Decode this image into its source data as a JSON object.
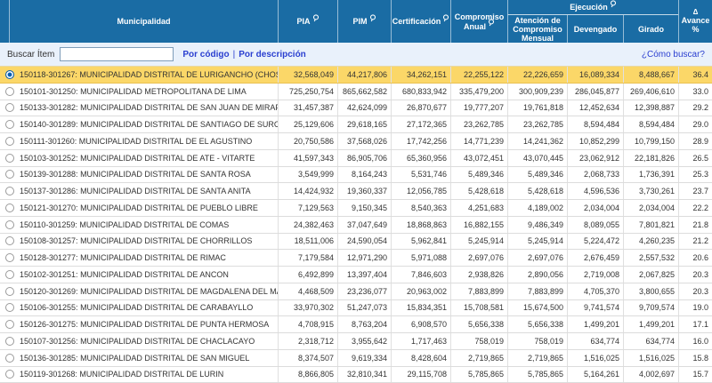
{
  "header": {
    "columns": {
      "municipality": "Municipalidad",
      "pia": "PIA",
      "pim": "PIM",
      "certificacion": "Certificación",
      "compromiso_anual": "Compromiso Anual",
      "ejecucion": "Ejecución",
      "atencion_compromiso_mensual": "Atención de Compromiso Mensual",
      "devengado": "Devengado",
      "girado": "Girado",
      "avance_sort_glyph": "Δ",
      "avance": "Avance %"
    }
  },
  "search": {
    "label": "Buscar Ítem",
    "value": "",
    "by_code_link": "Por código",
    "link_separator": "|",
    "by_description_link": "Por descripción",
    "help_link": "¿Cómo buscar?"
  },
  "colors": {
    "header_bg": "#1a6ca4",
    "selected_row_bg": "#fbd768",
    "link_blue": "#2a3fd0",
    "search_bar_bg": "#e9f1fb"
  },
  "table": {
    "rows": [
      {
        "selected": true,
        "code": "150118-301267",
        "name": "MUNICIPALIDAD DISTRITAL DE LURIGANCHO (CHOSICA)",
        "pia": "32,568,049",
        "pim": "44,217,806",
        "certificacion": "34,262,151",
        "compromiso_anual": "22,255,122",
        "atencion": "22,226,659",
        "devengado": "16,089,334",
        "girado": "8,488,667",
        "avance": "36.4"
      },
      {
        "selected": false,
        "code": "150101-301250",
        "name": "MUNICIPALIDAD METROPOLITANA DE LIMA",
        "pia": "725,250,754",
        "pim": "865,662,582",
        "certificacion": "680,833,942",
        "compromiso_anual": "335,479,200",
        "atencion": "300,909,239",
        "devengado": "286,045,877",
        "girado": "269,406,610",
        "avance": "33.0"
      },
      {
        "selected": false,
        "code": "150133-301282",
        "name": "MUNICIPALIDAD DISTRITAL DE SAN JUAN DE MIRAFLORES",
        "pia": "31,457,387",
        "pim": "42,624,099",
        "certificacion": "26,870,677",
        "compromiso_anual": "19,777,207",
        "atencion": "19,761,818",
        "devengado": "12,452,634",
        "girado": "12,398,887",
        "avance": "29.2"
      },
      {
        "selected": false,
        "code": "150140-301289",
        "name": "MUNICIPALIDAD DISTRITAL DE SANTIAGO DE SURCO",
        "pia": "25,129,606",
        "pim": "29,618,165",
        "certificacion": "27,172,365",
        "compromiso_anual": "23,262,785",
        "atencion": "23,262,785",
        "devengado": "8,594,484",
        "girado": "8,594,484",
        "avance": "29.0"
      },
      {
        "selected": false,
        "code": "150111-301260",
        "name": "MUNICIPALIDAD DISTRITAL DE EL AGUSTINO",
        "pia": "20,750,586",
        "pim": "37,568,026",
        "certificacion": "17,742,256",
        "compromiso_anual": "14,771,239",
        "atencion": "14,241,362",
        "devengado": "10,852,299",
        "girado": "10,799,150",
        "avance": "28.9"
      },
      {
        "selected": false,
        "code": "150103-301252",
        "name": "MUNICIPALIDAD DISTRITAL DE ATE - VITARTE",
        "pia": "41,597,343",
        "pim": "86,905,706",
        "certificacion": "65,360,956",
        "compromiso_anual": "43,072,451",
        "atencion": "43,070,445",
        "devengado": "23,062,912",
        "girado": "22,181,826",
        "avance": "26.5"
      },
      {
        "selected": false,
        "code": "150139-301288",
        "name": "MUNICIPALIDAD DISTRITAL DE SANTA ROSA",
        "pia": "3,549,999",
        "pim": "8,164,243",
        "certificacion": "5,531,746",
        "compromiso_anual": "5,489,346",
        "atencion": "5,489,346",
        "devengado": "2,068,733",
        "girado": "1,736,391",
        "avance": "25.3"
      },
      {
        "selected": false,
        "code": "150137-301286",
        "name": "MUNICIPALIDAD DISTRITAL DE SANTA ANITA",
        "pia": "14,424,932",
        "pim": "19,360,337",
        "certificacion": "12,056,785",
        "compromiso_anual": "5,428,618",
        "atencion": "5,428,618",
        "devengado": "4,596,536",
        "girado": "3,730,261",
        "avance": "23.7"
      },
      {
        "selected": false,
        "code": "150121-301270",
        "name": "MUNICIPALIDAD DISTRITAL DE PUEBLO LIBRE",
        "pia": "7,129,563",
        "pim": "9,150,345",
        "certificacion": "8,540,363",
        "compromiso_anual": "4,251,683",
        "atencion": "4,189,002",
        "devengado": "2,034,004",
        "girado": "2,034,004",
        "avance": "22.2"
      },
      {
        "selected": false,
        "code": "150110-301259",
        "name": "MUNICIPALIDAD DISTRITAL DE COMAS",
        "pia": "24,382,463",
        "pim": "37,047,649",
        "certificacion": "18,868,863",
        "compromiso_anual": "16,882,155",
        "atencion": "9,486,349",
        "devengado": "8,089,055",
        "girado": "7,801,821",
        "avance": "21.8"
      },
      {
        "selected": false,
        "code": "150108-301257",
        "name": "MUNICIPALIDAD DISTRITAL DE CHORRILLOS",
        "pia": "18,511,006",
        "pim": "24,590,054",
        "certificacion": "5,962,841",
        "compromiso_anual": "5,245,914",
        "atencion": "5,245,914",
        "devengado": "5,224,472",
        "girado": "4,260,235",
        "avance": "21.2"
      },
      {
        "selected": false,
        "code": "150128-301277",
        "name": "MUNICIPALIDAD DISTRITAL DE RIMAC",
        "pia": "7,179,584",
        "pim": "12,971,290",
        "certificacion": "5,971,088",
        "compromiso_anual": "2,697,076",
        "atencion": "2,697,076",
        "devengado": "2,676,459",
        "girado": "2,557,532",
        "avance": "20.6"
      },
      {
        "selected": false,
        "code": "150102-301251",
        "name": "MUNICIPALIDAD DISTRITAL DE ANCON",
        "pia": "6,492,899",
        "pim": "13,397,404",
        "certificacion": "7,846,603",
        "compromiso_anual": "2,938,826",
        "atencion": "2,890,056",
        "devengado": "2,719,008",
        "girado": "2,067,825",
        "avance": "20.3"
      },
      {
        "selected": false,
        "code": "150120-301269",
        "name": "MUNICIPALIDAD DISTRITAL DE MAGDALENA DEL MAR",
        "pia": "4,468,509",
        "pim": "23,236,077",
        "certificacion": "20,963,002",
        "compromiso_anual": "7,883,899",
        "atencion": "7,883,899",
        "devengado": "4,705,370",
        "girado": "3,800,655",
        "avance": "20.3"
      },
      {
        "selected": false,
        "code": "150106-301255",
        "name": "MUNICIPALIDAD DISTRITAL DE CARABAYLLO",
        "pia": "33,970,302",
        "pim": "51,247,073",
        "certificacion": "15,834,351",
        "compromiso_anual": "15,708,581",
        "atencion": "15,674,500",
        "devengado": "9,741,574",
        "girado": "9,709,574",
        "avance": "19.0"
      },
      {
        "selected": false,
        "code": "150126-301275",
        "name": "MUNICIPALIDAD DISTRITAL DE PUNTA HERMOSA",
        "pia": "4,708,915",
        "pim": "8,763,204",
        "certificacion": "6,908,570",
        "compromiso_anual": "5,656,338",
        "atencion": "5,656,338",
        "devengado": "1,499,201",
        "girado": "1,499,201",
        "avance": "17.1"
      },
      {
        "selected": false,
        "code": "150107-301256",
        "name": "MUNICIPALIDAD DISTRITAL DE CHACLACAYO",
        "pia": "2,318,712",
        "pim": "3,955,642",
        "certificacion": "1,717,463",
        "compromiso_anual": "758,019",
        "atencion": "758,019",
        "devengado": "634,774",
        "girado": "634,774",
        "avance": "16.0"
      },
      {
        "selected": false,
        "code": "150136-301285",
        "name": "MUNICIPALIDAD DISTRITAL DE SAN MIGUEL",
        "pia": "8,374,507",
        "pim": "9,619,334",
        "certificacion": "8,428,604",
        "compromiso_anual": "2,719,865",
        "atencion": "2,719,865",
        "devengado": "1,516,025",
        "girado": "1,516,025",
        "avance": "15.8"
      },
      {
        "selected": false,
        "code": "150119-301268",
        "name": "MUNICIPALIDAD DISTRITAL DE LURIN",
        "pia": "8,866,805",
        "pim": "32,810,341",
        "certificacion": "29,115,708",
        "compromiso_anual": "5,785,865",
        "atencion": "5,785,865",
        "devengado": "5,164,261",
        "girado": "4,002,697",
        "avance": "15.7"
      }
    ]
  }
}
